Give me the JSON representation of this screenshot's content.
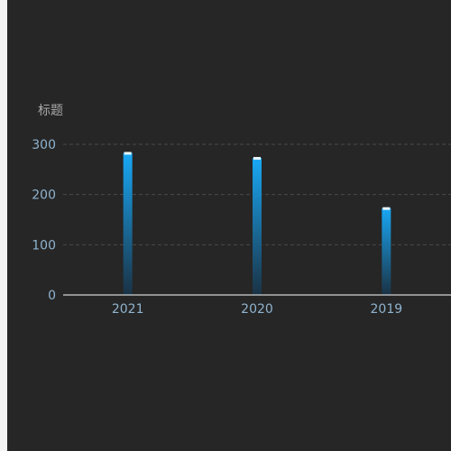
{
  "chart_data": {
    "type": "bar",
    "title": "",
    "xlabel": "",
    "ylabel": "标题",
    "categories": [
      "2021",
      "2020",
      "2019"
    ],
    "values": [
      283,
      273,
      173
    ],
    "ylim": [
      0,
      300
    ],
    "yticks": [
      0,
      100,
      200,
      300
    ],
    "grid": true,
    "colors": {
      "bar_top": "#19a8f5",
      "bar_bottom": "#1a3244",
      "cap": "#e9f6ff",
      "grid": "#4a4a4a",
      "axis": "#ffffff",
      "tick_text": "#8fb3cf",
      "ylabel_text": "#a9a9a9",
      "background": "#262626"
    }
  }
}
